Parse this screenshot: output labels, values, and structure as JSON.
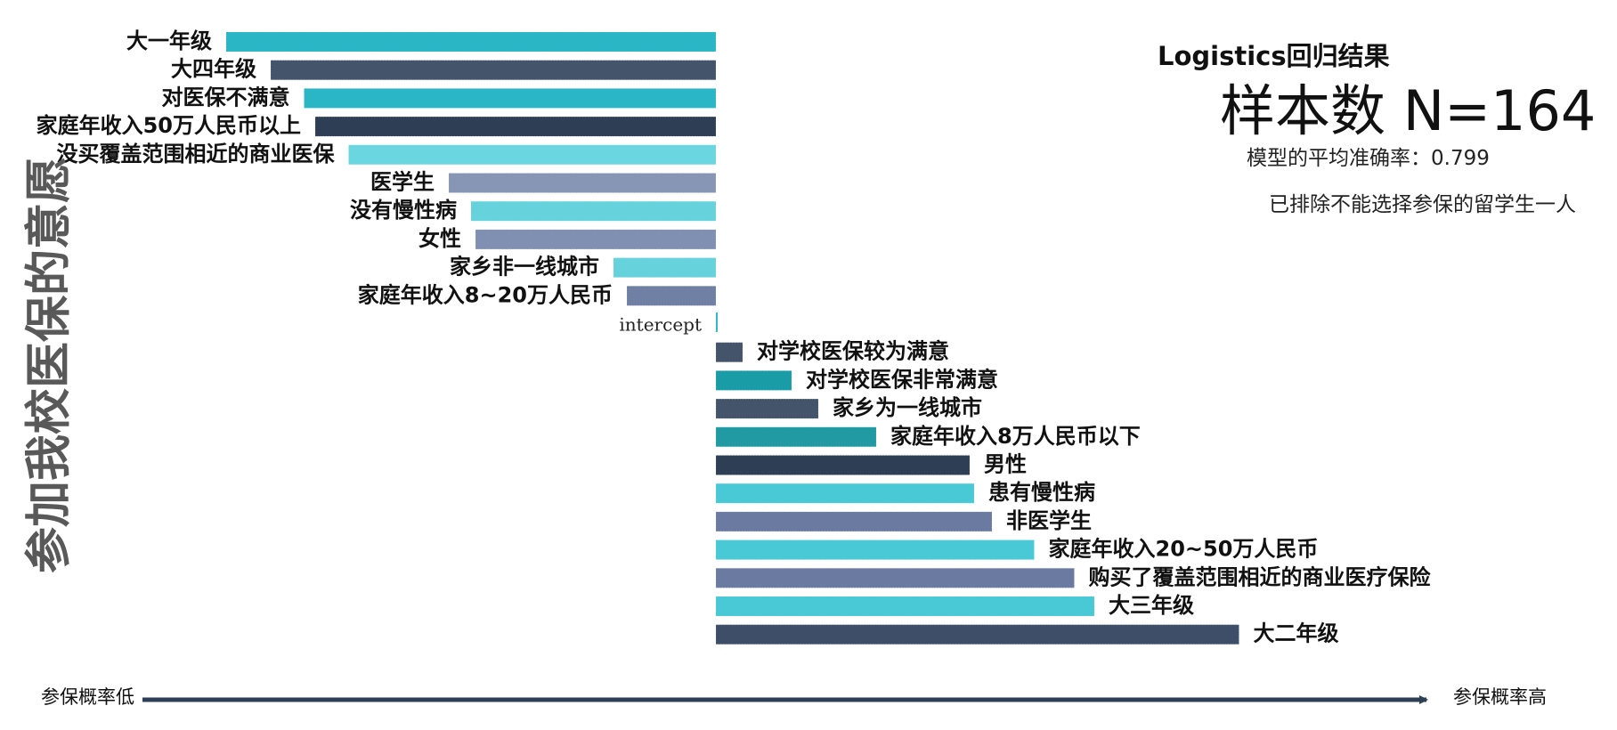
{
  "chart_data": {
    "type": "bar",
    "orientation": "horizontal",
    "title": "Logistics回归结果",
    "ylabel": "参加我校医保的意愿",
    "x_low_label": "参保概率低",
    "x_high_label": "参保概率高",
    "grid": false,
    "legend": "none",
    "categories": [
      "大一年级",
      "大四年级",
      "对医保不满意",
      "家庭年收入50万人民币以上",
      "没买覆盖范围相近的商业医保",
      "医学生",
      "没有慢性病",
      "女性",
      "家乡非一线城市",
      "家庭年收入8~20万人民币",
      "intercept",
      "对学校医保较为满意",
      "对学校医保非常满意",
      "家乡为一线城市",
      "家庭年收入8万人民币以下",
      "男性",
      "患有慢性病",
      "非医学生",
      "家庭年收入20~50万人民币",
      "购买了覆盖范围相近的商业医疗保险",
      "大三年级",
      "大二年级"
    ],
    "values": [
      -2.2,
      -2.0,
      -1.85,
      -1.8,
      -1.65,
      -1.2,
      -1.1,
      -1.08,
      -0.46,
      -0.4,
      0.0,
      0.12,
      0.34,
      0.46,
      0.72,
      1.14,
      1.16,
      1.24,
      1.43,
      1.61,
      1.7,
      2.35
    ],
    "xlim": [
      -3.2,
      3.2
    ],
    "colors": [
      "#2ab6c4",
      "#44546a",
      "#2ab6c4",
      "#2e3e55",
      "#6ad6e0",
      "#8896b6",
      "#66d2dc",
      "#8090b2",
      "#66d2dc",
      "#7080a4",
      "#2ab6c4",
      "#44546a",
      "#1a9ca6",
      "#44546a",
      "#229aa4",
      "#2e3e55",
      "#49c8d6",
      "#6a7aa0",
      "#49c8d6",
      "#6a7aa0",
      "#49c8d6",
      "#3e4e68"
    ]
  },
  "info": {
    "method": "Logistics回归结果",
    "sample_size": "样本数 N=164",
    "accuracy": "模型的平均准确率：0.799",
    "note": "已排除不能选择参保的留学生一人"
  },
  "axis": {
    "low_label": "参保概率低",
    "high_label": "参保概率高",
    "color": "#2e3e55"
  }
}
